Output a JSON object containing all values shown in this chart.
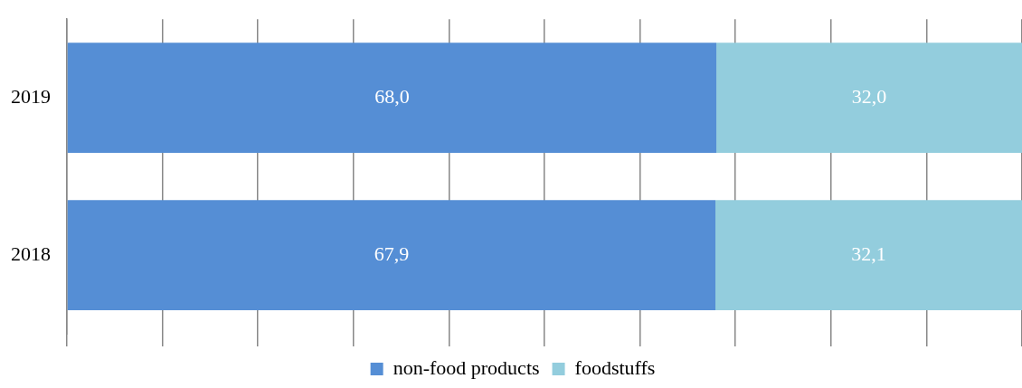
{
  "chart_data": {
    "type": "bar",
    "orientation": "horizontal",
    "stacked": true,
    "categories": [
      "2019",
      "2018"
    ],
    "series": [
      {
        "name": "non-food products",
        "color": "#558ed5",
        "values": [
          68.0,
          67.9
        ],
        "value_labels": [
          "68,0",
          "67,9"
        ]
      },
      {
        "name": "foodstuffs",
        "color": "#93cddd",
        "values": [
          32.0,
          32.1
        ],
        "value_labels": [
          "32,0",
          "32,1"
        ]
      }
    ],
    "xlim": [
      0,
      100
    ],
    "xticks": [
      {
        "value": 0,
        "label": null
      },
      {
        "value": 10,
        "label": null
      },
      {
        "value": 20,
        "label": null
      },
      {
        "value": 30,
        "label": null
      },
      {
        "value": 40,
        "label": null
      },
      {
        "value": 50,
        "label": null
      },
      {
        "value": 60,
        "label": null
      },
      {
        "value": 70,
        "label": null
      },
      {
        "value": 80,
        "label": null
      },
      {
        "value": 90,
        "label": null
      },
      {
        "value": 100,
        "label": null
      }
    ],
    "tick_labels": "y",
    "grid": "x",
    "legend": "bottom"
  }
}
